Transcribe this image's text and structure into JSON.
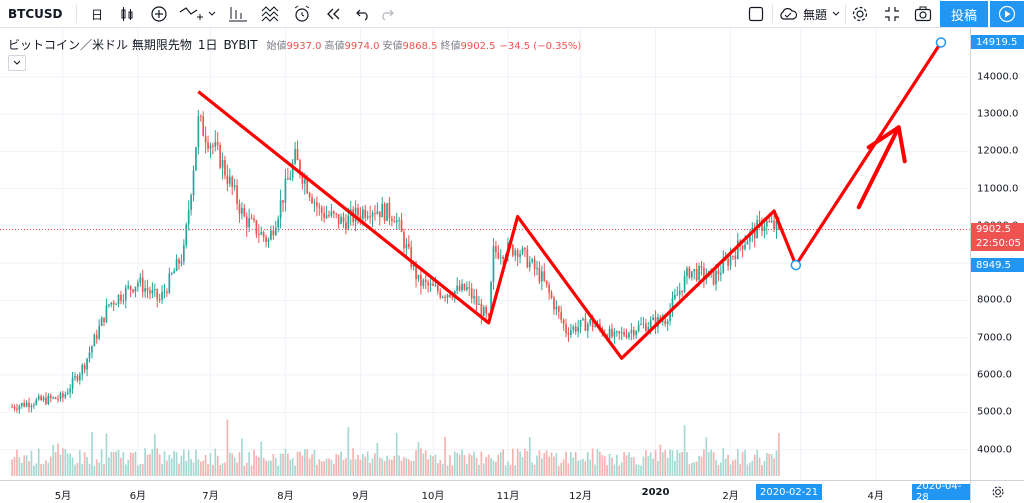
{
  "toolbar": {
    "symbol": "BTCUSD",
    "interval": "日",
    "template_label": "無題",
    "publish_label": "投稿"
  },
  "legend": {
    "title": "ビットコイン／米ドル 無期限先物",
    "interval": "1日",
    "exchange": "BYBIT",
    "open_label": "始値",
    "open": "9937.0",
    "high_label": "高値",
    "high": "9974.0",
    "low_label": "安値",
    "low": "9868.5",
    "close_label": "終値",
    "close": "9902.5",
    "change": "−34.5 (−0.35%)"
  },
  "price_axis": {
    "ticks": [
      "14000.0",
      "13000.0",
      "12000.0",
      "11000.0",
      "10000.0",
      "9000.0",
      "8000.0",
      "7000.0",
      "6000.0",
      "5000.0",
      "4000.0"
    ],
    "last_price": "9902.5",
    "countdown": "22:50:05",
    "target_high": "14919.5",
    "target_low": "8949.5"
  },
  "time_axis": {
    "ticks": [
      "5月",
      "6月",
      "7月",
      "8月",
      "9月",
      "10月",
      "11月",
      "12月",
      "2020",
      "2月",
      "4月"
    ],
    "date_label_1": "2020-02-21",
    "date_label_2": "2020-04-28"
  },
  "colors": {
    "up": "#26a69a",
    "down": "#ef5350",
    "drawing": "#ff0000",
    "accent": "#2196f3"
  },
  "icons": [
    "candles-icon",
    "add-indicator-icon",
    "compare-icon",
    "indicators-icon",
    "templates-icon",
    "alert-icon",
    "replay-icon",
    "undo-icon",
    "redo-icon",
    "layout-icon",
    "cloud-icon",
    "gear-icon",
    "fullscreen-icon",
    "camera-icon",
    "play-icon"
  ],
  "chart_data": {
    "type": "candlestick",
    "symbol": "BTCUSD",
    "x_range": [
      "2019-04",
      "2020-04-28"
    ],
    "ylim": [
      3400,
      15200
    ],
    "last_close": 9902.5,
    "x": [
      "2019-04-10",
      "2019-04-20",
      "2019-05-01",
      "2019-05-10",
      "2019-05-20",
      "2019-06-01",
      "2019-06-10",
      "2019-06-20",
      "2019-06-26",
      "2019-07-05",
      "2019-07-15",
      "2019-07-25",
      "2019-08-05",
      "2019-08-15",
      "2019-08-25",
      "2019-09-05",
      "2019-09-15",
      "2019-09-25",
      "2019-10-05",
      "2019-10-15",
      "2019-10-24",
      "2019-10-26",
      "2019-11-05",
      "2019-11-15",
      "2019-11-25",
      "2019-12-05",
      "2019-12-15",
      "2019-12-25",
      "2020-01-05",
      "2020-01-15",
      "2020-01-25",
      "2020-02-05",
      "2020-02-15",
      "2020-02-21"
    ],
    "series": [
      {
        "name": "BTCUSD",
        "values": [
          5150,
          5300,
          5400,
          6300,
          7900,
          8500,
          8000,
          9300,
          12800,
          11800,
          10200,
          9600,
          11800,
          10400,
          10100,
          10500,
          10300,
          8500,
          8200,
          8300,
          7450,
          9300,
          9400,
          8600,
          7200,
          7400,
          7000,
          7300,
          7500,
          8800,
          8600,
          9500,
          10100,
          9902.5
        ]
      }
    ],
    "volume_note": "volume histogram at bottom",
    "drawings": {
      "price_points": [
        13600,
        7400,
        10250,
        6450,
        10400,
        8949.5,
        14919.5
      ],
      "dates": [
        "2019-06-26",
        "2019-10-24",
        "2019-11-05",
        "2019-12-18",
        "2020-02-19",
        "2020-02-28",
        "2020-04-28"
      ]
    }
  }
}
